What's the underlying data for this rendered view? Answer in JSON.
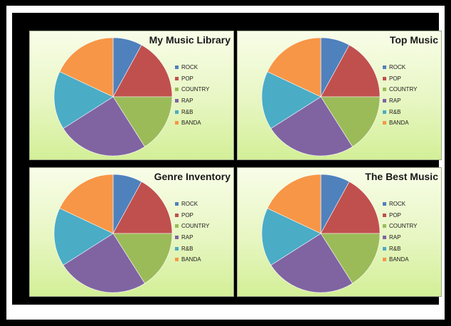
{
  "chart_data": [
    {
      "type": "pie",
      "title": "My Music Library",
      "categories": [
        "ROCK",
        "POP",
        "COUNTRY",
        "RAP",
        "R&B",
        "BANDA"
      ],
      "values": [
        8,
        17,
        16,
        25,
        16,
        18
      ],
      "colors": [
        "#4f81bd",
        "#c0504d",
        "#9bbb59",
        "#8064a2",
        "#4bacc6",
        "#f79646"
      ],
      "legend_position": "right"
    },
    {
      "type": "pie",
      "title": "Top Music",
      "categories": [
        "ROCK",
        "POP",
        "COUNTRY",
        "RAP",
        "R&B",
        "BANDA"
      ],
      "values": [
        8,
        17,
        16,
        25,
        16,
        18
      ],
      "colors": [
        "#4f81bd",
        "#c0504d",
        "#9bbb59",
        "#8064a2",
        "#4bacc6",
        "#f79646"
      ],
      "legend_position": "right"
    },
    {
      "type": "pie",
      "title": "Genre Inventory",
      "categories": [
        "ROCK",
        "POP",
        "COUNTRY",
        "RAP",
        "R&B",
        "BANDA"
      ],
      "values": [
        8,
        17,
        16,
        25,
        16,
        18
      ],
      "colors": [
        "#4f81bd",
        "#c0504d",
        "#9bbb59",
        "#8064a2",
        "#4bacc6",
        "#f79646"
      ],
      "legend_position": "right"
    },
    {
      "type": "pie",
      "title": "The Best Music",
      "categories": [
        "ROCK",
        "POP",
        "COUNTRY",
        "RAP",
        "R&B",
        "BANDA"
      ],
      "values": [
        8,
        17,
        16,
        25,
        16,
        18
      ],
      "colors": [
        "#4f81bd",
        "#c0504d",
        "#9bbb59",
        "#8064a2",
        "#4bacc6",
        "#f79646"
      ],
      "legend_position": "right"
    }
  ],
  "colors": {
    "page_background": "#000000",
    "frame": "#ffffff",
    "panel_gradient_top": "#f8fde8",
    "panel_gradient_bottom": "#d3ef97"
  }
}
